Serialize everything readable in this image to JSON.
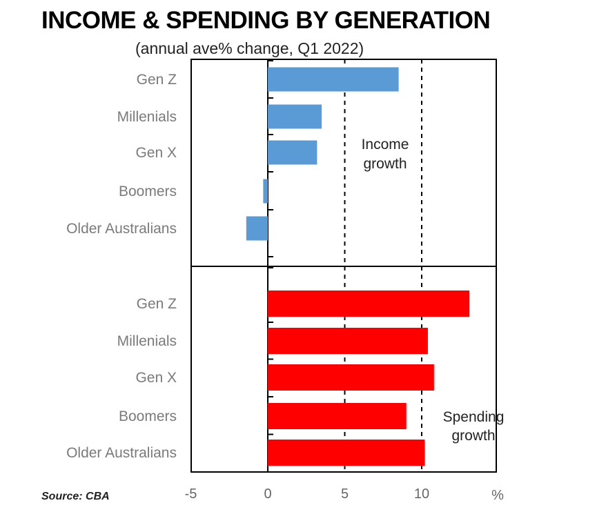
{
  "chart_data": {
    "type": "bar",
    "orientation": "horizontal",
    "title": "INCOME & SPENDING BY GENERATION",
    "subtitle": "(annual  ave% change, Q1 2022)",
    "x_unit": "%",
    "xlim": [
      -5,
      15
    ],
    "x_ticks": [
      -5,
      0,
      5,
      10
    ],
    "x_tick_labels": [
      "-5",
      "0",
      "5",
      "10"
    ],
    "grid": "dashed vertical lines at 5 and 10",
    "source": "Source: CBA",
    "panels": [
      {
        "annotation": [
          "Income",
          "growth"
        ],
        "color": "#5b9bd5",
        "categories": [
          "Gen Z",
          "Millenials",
          "Gen X",
          "Boomers",
          "Older Australians"
        ],
        "values": [
          8.5,
          3.5,
          3.2,
          -0.3,
          -1.4
        ]
      },
      {
        "annotation": [
          "Spending",
          "growth"
        ],
        "color": "#ff0000",
        "categories": [
          "Gen Z",
          "Millenials",
          "Gen X",
          "Boomers",
          "Older Australians"
        ],
        "values": [
          13.1,
          10.4,
          10.8,
          9.0,
          10.2
        ]
      }
    ]
  }
}
